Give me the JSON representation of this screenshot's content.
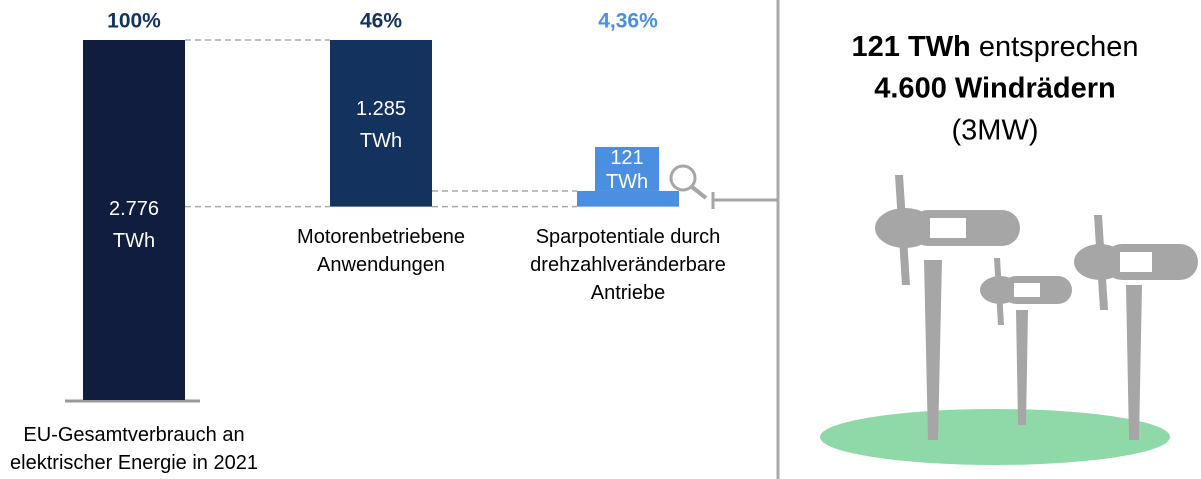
{
  "chart_data": {
    "type": "bar",
    "categories": [
      "EU-Gesamtverbrauch an\nelektrischer Energie in 2021",
      "Motorenbetriebene\nAnwendungen",
      "Sparpotentiale durch\ndrehzahlveränderbare\nAntriebe"
    ],
    "values": [
      2776,
      1285,
      121
    ],
    "value_labels": [
      "2.776 TWh",
      "1.285 TWh",
      "121 TWh"
    ],
    "share_labels": [
      "100%",
      "46%",
      "4,36%"
    ],
    "colors": [
      "#111d3f",
      "#14325e",
      "#4a8fe0"
    ]
  },
  "annotation": {
    "line1_bold": "121 TWh",
    "line1": "entsprechen",
    "line2": "4.600 Windrädern",
    "line3": "(3MW)"
  }
}
